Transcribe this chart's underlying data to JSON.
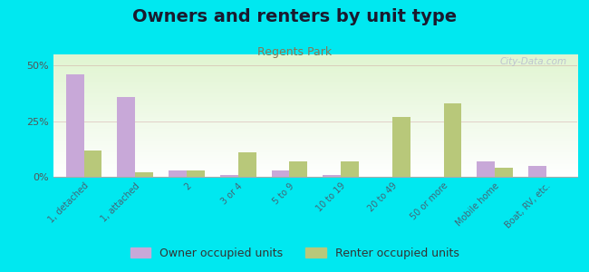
{
  "title": "Owners and renters by unit type",
  "subtitle": "Regents Park",
  "categories": [
    "1, detached",
    "1, attached",
    "2",
    "3 or 4",
    "5 to 9",
    "10 to 19",
    "20 to 49",
    "50 or more",
    "Mobile home",
    "Boat, RV, etc."
  ],
  "owner_values": [
    46,
    36,
    3,
    1,
    3,
    1,
    0,
    0,
    7,
    5
  ],
  "renter_values": [
    12,
    2,
    3,
    11,
    7,
    7,
    27,
    33,
    4,
    0
  ],
  "owner_color": "#c8a8d8",
  "renter_color": "#b8c87a",
  "ylim": [
    0,
    55
  ],
  "yticks": [
    0,
    25,
    50
  ],
  "ytick_labels": [
    "0%",
    "25%",
    "50%"
  ],
  "background_color": "#00e8f0",
  "title_color": "#1a1a2e",
  "subtitle_color": "#887755",
  "title_fontsize": 14,
  "subtitle_fontsize": 9,
  "legend_fontsize": 9,
  "watermark": "City-Data.com",
  "bar_width": 0.35
}
